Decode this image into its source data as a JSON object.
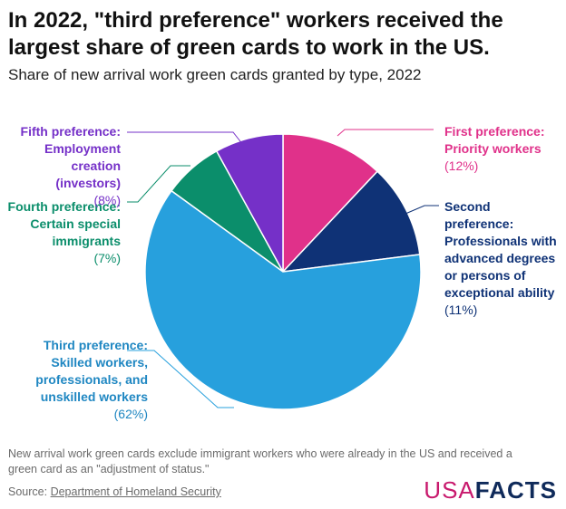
{
  "title": "In 2022, \"third preference\" workers received the largest share of green cards to work in the US.",
  "subtitle": "Share of new arrival work green cards granted by type, 2022",
  "chart_data": {
    "type": "pie",
    "title": "In 2022, \"third preference\" workers received the largest share of green cards to work in the US.",
    "subtitle": "Share of new arrival work green cards granted by type, 2022",
    "slices": [
      {
        "key": "first",
        "heading": "First preference:\nPriority workers",
        "pct_label": "(12%)",
        "value": 12,
        "color": "#e0318a"
      },
      {
        "key": "second",
        "heading": "Second\npreference:\nProfessionals with\nadvanced degrees\nor persons of\nexceptional ability",
        "pct_label": "(11%)",
        "value": 11,
        "color": "#0f3276"
      },
      {
        "key": "third",
        "heading": "Third preference:\nSkilled workers,\nprofessionals, and\nunskilled workers",
        "pct_label": "(62%)",
        "value": 62,
        "color": "#27a0dd"
      },
      {
        "key": "fourth",
        "heading": "Fourth preference:\nCertain special\nimmigrants",
        "pct_label": "(7%)",
        "value": 7,
        "color": "#0b8e6b"
      },
      {
        "key": "fifth",
        "heading": "Fifth preference:\nEmployment\ncreation\n(investors)",
        "pct_label": "(8%)",
        "value": 8,
        "color": "#7530c8"
      }
    ]
  },
  "footnote": "New arrival work green cards exclude immigrant workers who were already in the US and received a green card as an \"adjustment of status.\"",
  "source": {
    "prefix": "Source: ",
    "link": "Department of Homeland Security"
  },
  "logo": {
    "usa": "USA",
    "facts": "FACTS"
  }
}
